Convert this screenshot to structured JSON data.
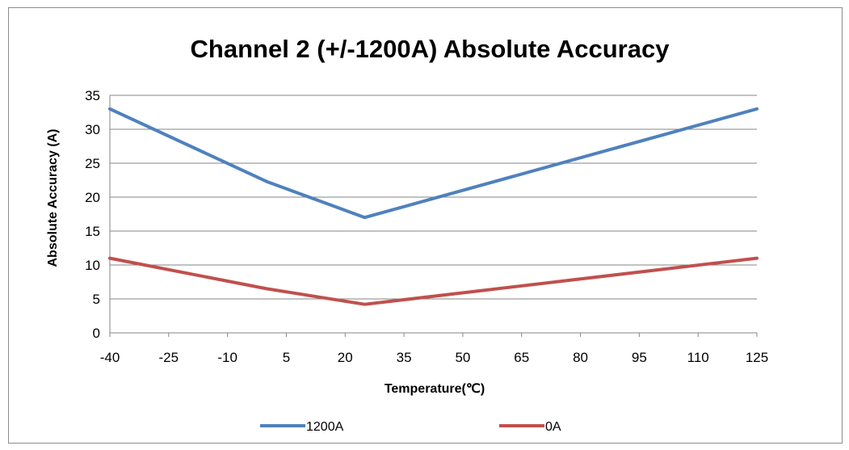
{
  "chart_data": {
    "type": "line",
    "title": "Channel 2 (+/-1200A) Absolute Accuracy",
    "xlabel": "Temperature(℃)",
    "ylabel": "Absolute Accuracy (A)",
    "x_ticks": [
      "-40",
      "-25",
      "-10",
      "5",
      "20",
      "35",
      "50",
      "65",
      "80",
      "95",
      "110",
      "125"
    ],
    "y_ticks": [
      "0",
      "5",
      "10",
      "15",
      "20",
      "25",
      "30",
      "35"
    ],
    "xlim": [
      -40,
      125
    ],
    "ylim": [
      0,
      35
    ],
    "grid": "horizontal",
    "legend_position": "bottom",
    "series": [
      {
        "name": "1200A",
        "color": "#4f81bd",
        "x": [
          -40,
          0,
          25,
          125
        ],
        "values": [
          33,
          22.3,
          17,
          33
        ]
      },
      {
        "name": "0A",
        "color": "#c0504d",
        "x": [
          -40,
          0,
          25,
          125
        ],
        "values": [
          11,
          6.5,
          4.2,
          11
        ]
      }
    ]
  }
}
